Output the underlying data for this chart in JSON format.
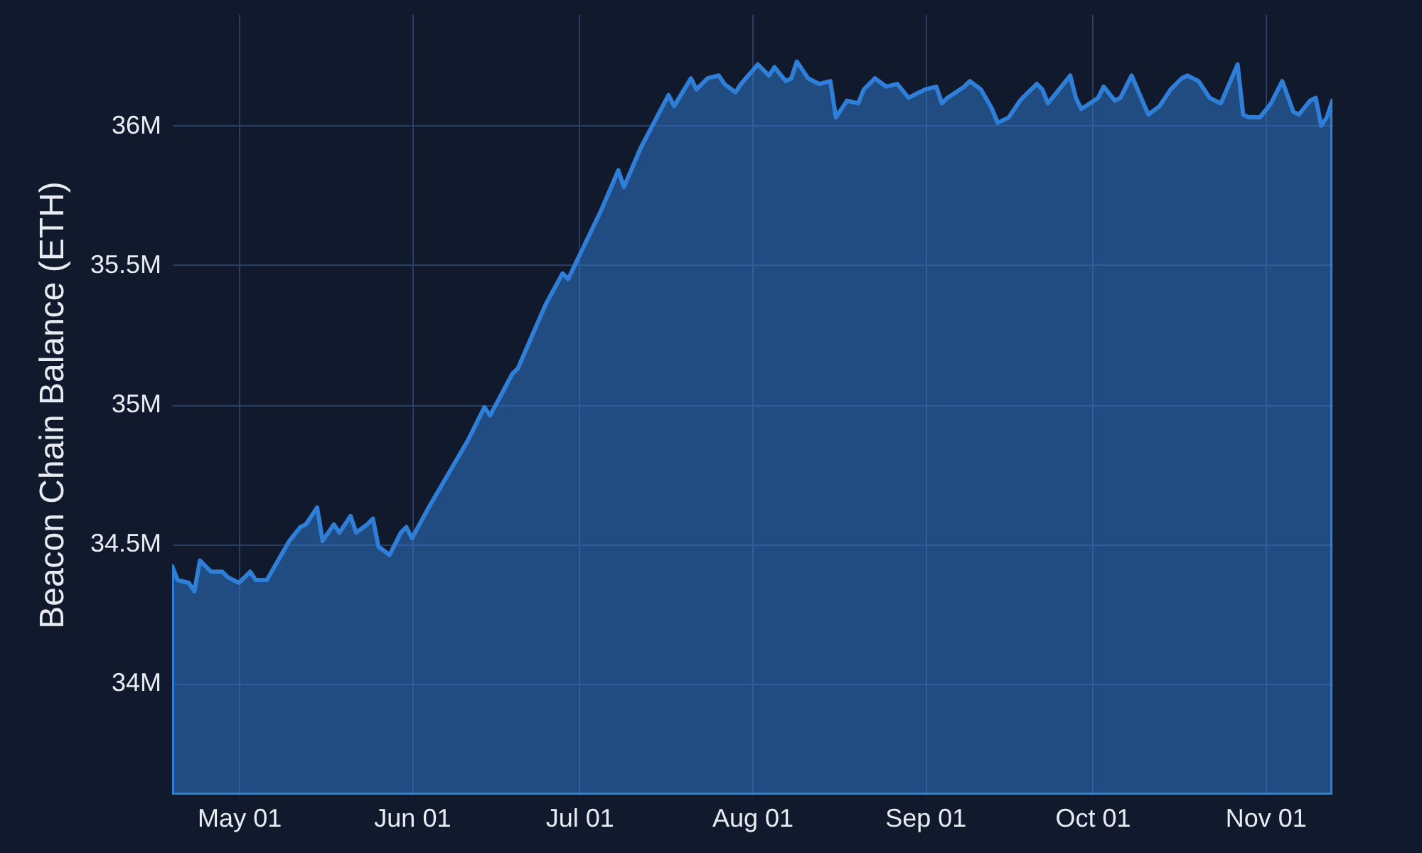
{
  "chart_data": {
    "type": "area",
    "ylabel": "Beacon Chain Balance (ETH)",
    "x": [
      "--04-19",
      "--04-20",
      "--04-22",
      "--04-23",
      "--04-24",
      "--04-26",
      "--04-28",
      "--04-29",
      "--05-01",
      "--05-03",
      "--05-04",
      "--05-06",
      "--05-08",
      "--05-10",
      "--05-12",
      "--05-13",
      "--05-15",
      "--05-16",
      "--05-18",
      "--05-19",
      "--05-21",
      "--05-22",
      "--05-24",
      "--05-25",
      "--05-26",
      "--05-28",
      "--05-30",
      "--05-31",
      "--06-01",
      "--06-04",
      "--06-11",
      "--06-14",
      "--06-15",
      "--06-19",
      "--06-20",
      "--06-25",
      "--06-28",
      "--06-29",
      "--07-05",
      "--07-08",
      "--07-09",
      "--07-12",
      "--07-17",
      "--07-18",
      "--07-21",
      "--07-22",
      "--07-24",
      "--07-26",
      "--07-27",
      "--07-29",
      "--07-30",
      "--08-02",
      "--08-04",
      "--08-05",
      "--08-07",
      "--08-08",
      "--08-09",
      "--08-11",
      "--08-13",
      "--08-15",
      "--08-16",
      "--08-18",
      "--08-20",
      "--08-21",
      "--08-23",
      "--08-25",
      "--08-27",
      "--08-29",
      "--08-31",
      "--09-01",
      "--09-03",
      "--09-04",
      "--09-05",
      "--09-08",
      "--09-09",
      "--09-11",
      "--09-13",
      "--09-14",
      "--09-16",
      "--09-18",
      "--09-19",
      "--09-21",
      "--09-22",
      "--09-23",
      "--09-27",
      "--09-28",
      "--09-29",
      "--10-02",
      "--10-03",
      "--10-05",
      "--10-06",
      "--10-08",
      "--10-11",
      "--10-13",
      "--10-15",
      "--10-17",
      "--10-18",
      "--10-20",
      "--10-22",
      "--10-24",
      "--10-27",
      "--10-28",
      "--10-29",
      "--10-31",
      "--11-02",
      "--11-04",
      "--11-06",
      "--11-07",
      "--11-09",
      "--11-10",
      "--11-11",
      "--11-12",
      "--11-13"
    ],
    "series": [
      {
        "color": "#2f7ed8",
        "values": [
          34420000,
          34370000,
          34360000,
          34330000,
          34440000,
          34400000,
          34400000,
          34380000,
          34360000,
          34400000,
          34370000,
          34370000,
          34440000,
          34510000,
          34560000,
          34570000,
          34630000,
          34510000,
          34570000,
          34540000,
          34600000,
          34540000,
          34570000,
          34590000,
          34490000,
          34460000,
          34540000,
          34560000,
          34520000,
          34630000,
          34870000,
          34990000,
          34960000,
          35110000,
          35130000,
          35360000,
          35470000,
          35450000,
          35700000,
          35840000,
          35780000,
          35920000,
          36110000,
          36070000,
          36170000,
          36130000,
          36170000,
          36180000,
          36150000,
          36120000,
          36150000,
          36220000,
          36180000,
          36210000,
          36160000,
          36170000,
          36230000,
          36170000,
          36150000,
          36160000,
          36030000,
          36090000,
          36080000,
          36130000,
          36170000,
          36140000,
          36150000,
          36100000,
          36120000,
          36130000,
          36140000,
          36080000,
          36100000,
          36140000,
          36160000,
          36130000,
          36060000,
          36010000,
          36030000,
          36090000,
          36110000,
          36150000,
          36130000,
          36080000,
          36180000,
          36100000,
          36060000,
          36100000,
          36140000,
          36090000,
          36100000,
          36180000,
          36040000,
          36070000,
          36130000,
          36170000,
          36180000,
          36160000,
          36100000,
          36080000,
          36220000,
          36040000,
          36030000,
          36030000,
          36080000,
          36160000,
          36050000,
          36040000,
          36090000,
          36100000,
          36000000,
          36030000,
          36090000
        ]
      }
    ],
    "xlim": [
      "--04-19",
      "--11-13"
    ],
    "xticks": [
      {
        "value": "--05-01",
        "label": "May 01"
      },
      {
        "value": "--06-01",
        "label": "Jun 01"
      },
      {
        "value": "--07-01",
        "label": "Jul 01"
      },
      {
        "value": "--08-01",
        "label": "Aug 01"
      },
      {
        "value": "--09-01",
        "label": "Sep 01"
      },
      {
        "value": "--10-01",
        "label": "Oct 01"
      },
      {
        "value": "--11-01",
        "label": "Nov 01"
      }
    ],
    "ylim": [
      33600000,
      36400000
    ],
    "yticks": [
      {
        "value": 34000000,
        "label": "34M"
      },
      {
        "value": 34500000,
        "label": "34.5M"
      },
      {
        "value": 35000000,
        "label": "35M"
      },
      {
        "value": 35500000,
        "label": "35.5M"
      },
      {
        "value": 36000000,
        "label": "36M"
      }
    ],
    "grid": true
  }
}
